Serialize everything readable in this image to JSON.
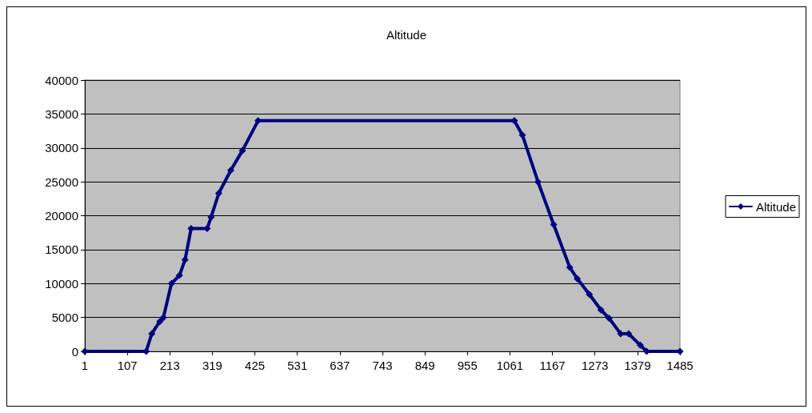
{
  "chart_data": {
    "type": "line",
    "title": "Altitude",
    "x": [
      1,
      154,
      168,
      188,
      197,
      217,
      237,
      251,
      266,
      306,
      316,
      335,
      365,
      394,
      433,
      1072,
      1092,
      1131,
      1170,
      1210,
      1229,
      1259,
      1288,
      1308,
      1337,
      1357,
      1386,
      1402,
      1485
    ],
    "series": [
      {
        "name": "Altitude",
        "color": "#000080",
        "values": [
          0,
          0,
          2600,
          4400,
          5000,
          10000,
          11200,
          13500,
          18100,
          18100,
          19800,
          23300,
          26700,
          29600,
          34000,
          34000,
          31900,
          25000,
          18700,
          12400,
          10700,
          8400,
          6100,
          4900,
          2600,
          2600,
          900,
          0,
          0
        ]
      }
    ],
    "xlim": [
      1,
      1485
    ],
    "xticks": [
      1,
      107,
      213,
      319,
      425,
      531,
      637,
      743,
      849,
      955,
      1061,
      1167,
      1273,
      1379,
      1485
    ],
    "ylim": [
      0,
      40000
    ],
    "yticks": [
      0,
      5000,
      10000,
      15000,
      20000,
      25000,
      30000,
      35000,
      40000
    ],
    "grid": "y",
    "legend": "right",
    "marker": "diamond",
    "line_style": "solid"
  }
}
